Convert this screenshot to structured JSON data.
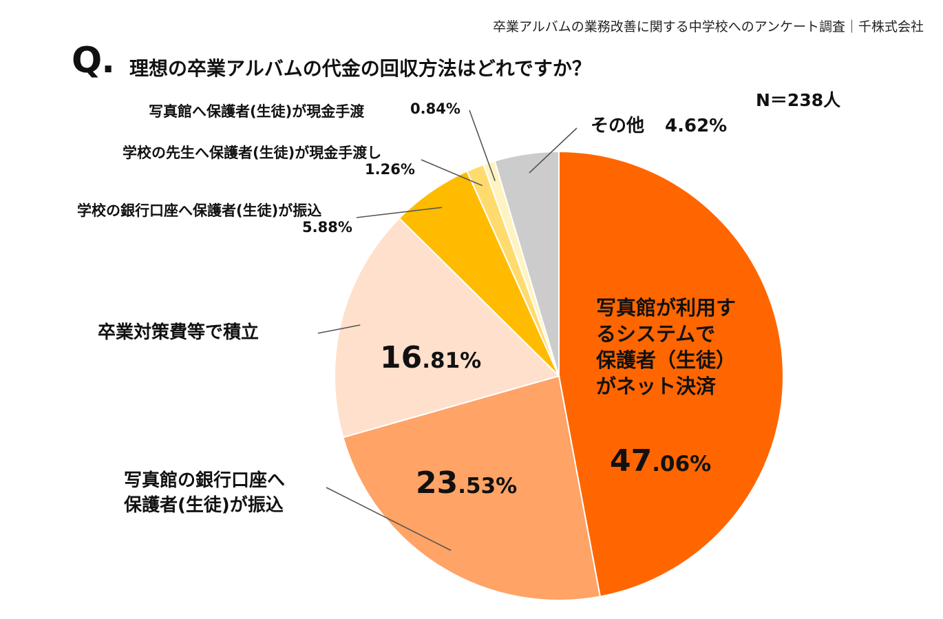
{
  "header": {
    "source": "卒業アルバムの業務改善に関する中学校へのアンケート調査｜千株式会社",
    "q_mark": "Q.",
    "question": "理想の卒業アルバムの代金の回収方法はどれですか？",
    "sample": "N＝238人"
  },
  "chart_data": {
    "type": "pie",
    "title": "理想の卒業アルバムの代金の回収方法はどれですか？",
    "start_angle_deg": 0,
    "direction": "clockwise",
    "slices": [
      {
        "label": "写真館が利用するシステムで保護者（生徒）がネット決済",
        "label_lines": [
          "写真館が利用す",
          "るシステムで",
          "保護者（生徒）",
          "がネット決済"
        ],
        "value": 47.06,
        "value_int": "47",
        "value_dec": ".06%",
        "color": "#ff6600"
      },
      {
        "label": "写真館の銀行口座へ保護者(生徒)が振込",
        "label_lines": [
          "写真館の銀行口座へ",
          "保護者(生徒)が振込"
        ],
        "value": 23.53,
        "value_int": "23",
        "value_dec": ".53%",
        "color": "#ffa366"
      },
      {
        "label": "卒業対策費等で積立",
        "value": 16.81,
        "value_int": "16",
        "value_dec": ".81%",
        "color": "#ffe0cc"
      },
      {
        "label": "学校の銀行口座へ保護者(生徒)が振込",
        "value": 5.88,
        "value_text": "5.88%",
        "color": "#ffbb00"
      },
      {
        "label": "学校の先生へ保護者(生徒)が現金手渡し",
        "value": 1.26,
        "value_text": "1.26%",
        "color": "#ffdb6e"
      },
      {
        "label": "写真館へ保護者(生徒)が現金手渡",
        "value": 0.84,
        "value_text": "0.84%",
        "color": "#fff3c2"
      },
      {
        "label": "その他",
        "value": 4.62,
        "value_text": "4.62%",
        "color": "#cccccc"
      }
    ]
  }
}
